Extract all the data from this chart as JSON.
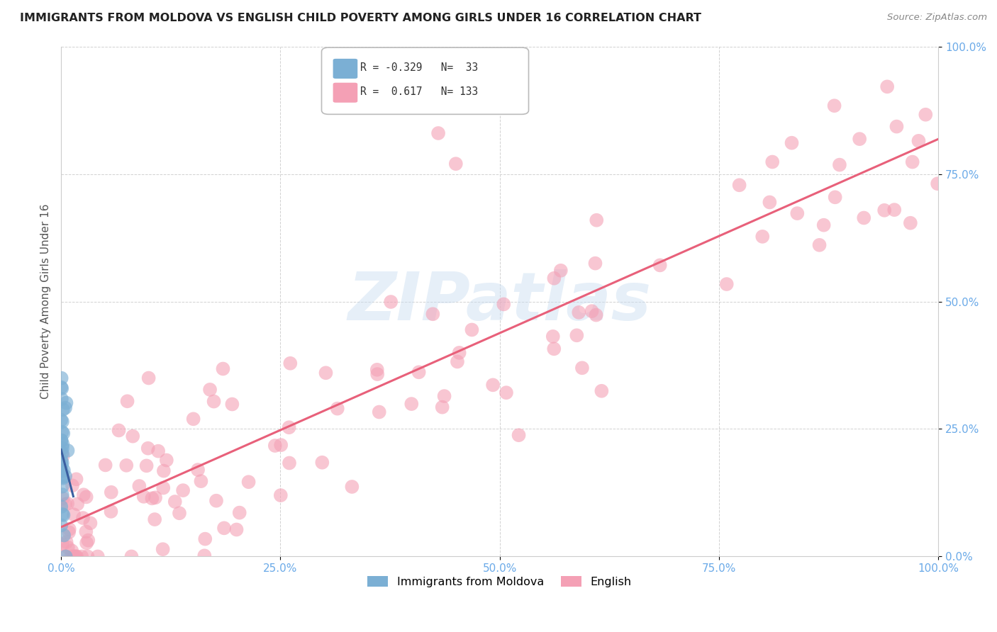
{
  "title": "IMMIGRANTS FROM MOLDOVA VS ENGLISH CHILD POVERTY AMONG GIRLS UNDER 16 CORRELATION CHART",
  "source": "Source: ZipAtlas.com",
  "ylabel": "Child Poverty Among Girls Under 16",
  "xlim": [
    0,
    1.0
  ],
  "ylim": [
    0,
    1.0
  ],
  "xtick_vals": [
    0.0,
    0.25,
    0.5,
    0.75,
    1.0
  ],
  "xtick_labels": [
    "0.0%",
    "25.0%",
    "50.0%",
    "75.0%",
    "100.0%"
  ],
  "ytick_vals": [
    0.0,
    0.25,
    0.5,
    0.75,
    1.0
  ],
  "ytick_labels": [
    "0.0%",
    "25.0%",
    "50.0%",
    "75.0%",
    "100.0%"
  ],
  "legend_label1": "Immigrants from Moldova",
  "legend_label2": "English",
  "R1": "-0.329",
  "N1": "33",
  "R2": "0.617",
  "N2": "133",
  "color_moldova": "#7BAFD4",
  "color_english": "#F4A0B5",
  "trendline_moldova": "#3B5FA0",
  "trendline_english": "#E8607A",
  "watermark_text": "ZIPatlas",
  "background_color": "#FFFFFF",
  "tick_color": "#6BAAE8",
  "ylabel_color": "#555555"
}
